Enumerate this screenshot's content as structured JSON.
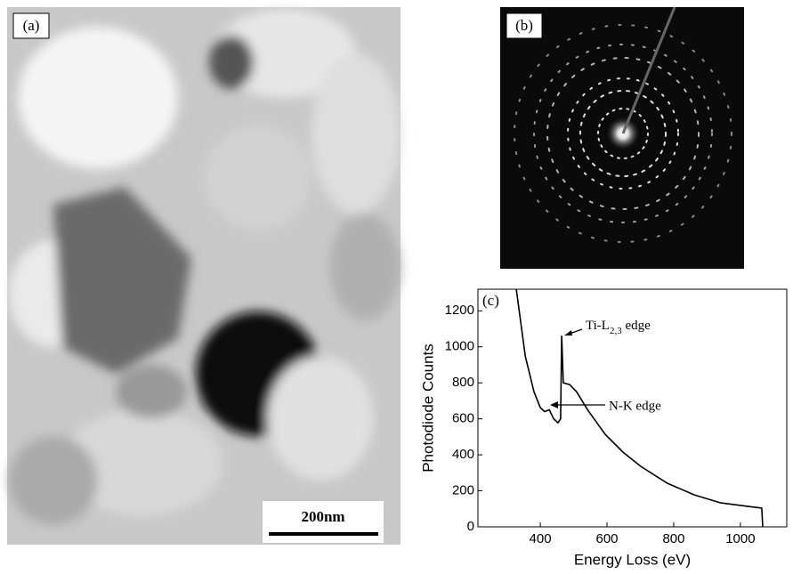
{
  "panels": {
    "a": {
      "label": "(a)",
      "scale_bar": "200nm"
    },
    "b": {
      "label": "(b)"
    }
  },
  "chart_data": {
    "type": "line",
    "panel_label": "(c)",
    "x_label": "Energy Loss (eV)",
    "y_label": "Photodiode Counts",
    "x": [
      328,
      355,
      381,
      400,
      413,
      427,
      440,
      453,
      461,
      464,
      469,
      488,
      509,
      541,
      595,
      648,
      701,
      781,
      861,
      941,
      1021,
      1064,
      1067
    ],
    "values": [
      1320,
      948,
      750,
      662,
      640,
      650,
      600,
      578,
      600,
      1062,
      800,
      790,
      750,
      652,
      513,
      415,
      336,
      242,
      178,
      133,
      114,
      104,
      0
    ],
    "color": "#000000",
    "xlim": [
      213,
      1139
    ],
    "ylim": [
      0,
      1320
    ],
    "xticks": [
      400,
      600,
      800,
      1000
    ],
    "yticks": [
      0,
      200,
      400,
      600,
      800,
      1000,
      1200
    ],
    "annotations": [
      {
        "text": "Ti-L",
        "sub": "2,3",
        "rest": " edge"
      },
      {
        "text": "N-K edge"
      }
    ]
  }
}
